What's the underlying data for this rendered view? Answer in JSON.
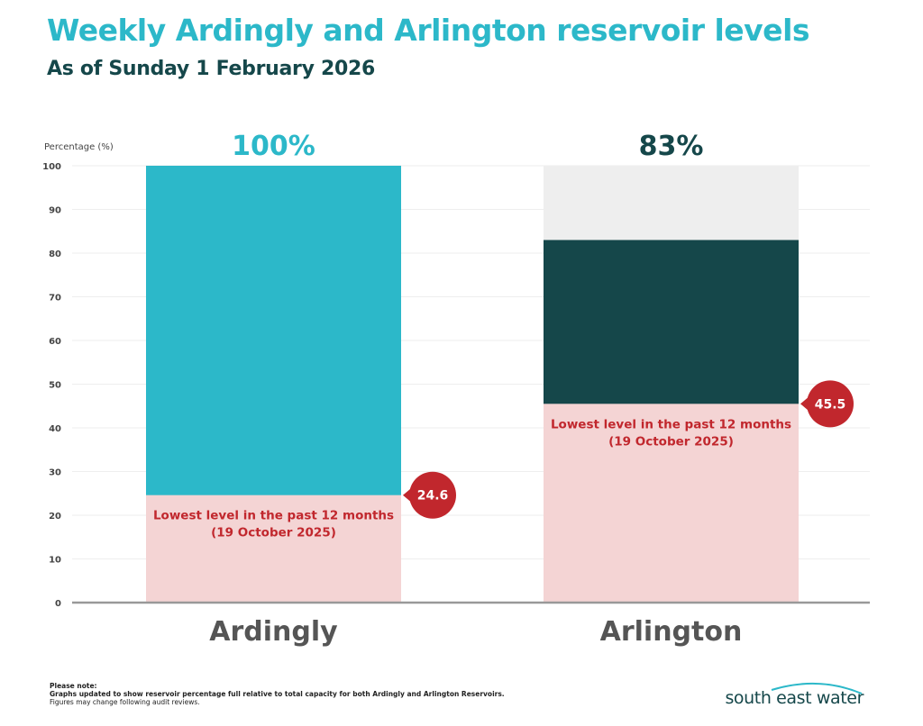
{
  "header": {
    "title": "Weekly Ardingly and Arlington reservoir levels",
    "subtitle": "As of Sunday 1 February 2026"
  },
  "chart_data": {
    "type": "bar",
    "ylabel": "Percentage (%)",
    "ylim": [
      0,
      100
    ],
    "yticks": [
      0,
      10,
      20,
      30,
      40,
      50,
      60,
      70,
      80,
      90,
      100
    ],
    "grid": true,
    "categories": [
      "Ardingly",
      "Arlington"
    ],
    "values": [
      100,
      83
    ],
    "value_labels": [
      "100%",
      "83%"
    ],
    "lowest_level": [
      24.6,
      45.5
    ],
    "lowest_level_labels": [
      "24.6",
      "45.5"
    ],
    "lowest_level_text": [
      "Lowest level in the past 12 months",
      "Lowest level in the past 12 months"
    ],
    "lowest_level_date": [
      "(19 October 2025)",
      "(19 October 2025)"
    ],
    "colors": {
      "ardingly": "#2cb8c9",
      "arlington": "#15474a",
      "capacity_background": "#eeeeee",
      "lowest_zone": "#f4d4d4",
      "lowest_text": "#c1272d",
      "callout": "#c1272d",
      "axis": "#999999",
      "grid": "#eeeeee",
      "category_label": "#555555"
    }
  },
  "footer": {
    "note_heading": "Please note:",
    "note_line1": "Graphs updated to show reservoir percentage full relative to total capacity for both Ardingly and Arlington Reservoirs.",
    "note_line2": "Figures may change following audit reviews.",
    "logo_text": "south east water"
  }
}
